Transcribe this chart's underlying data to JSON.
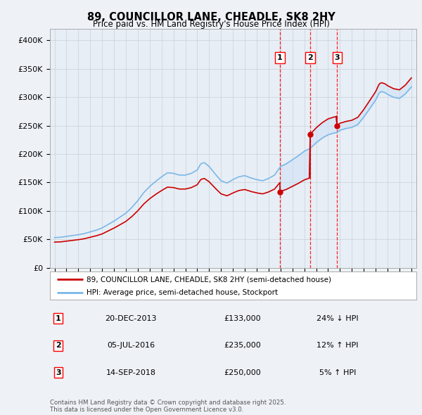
{
  "title": "89, COUNCILLOR LANE, CHEADLE, SK8 2HY",
  "subtitle": "Price paid vs. HM Land Registry's House Price Index (HPI)",
  "ylim": [
    0,
    420000
  ],
  "yticks": [
    0,
    50000,
    100000,
    150000,
    200000,
    250000,
    300000,
    350000,
    400000
  ],
  "ytick_labels": [
    "£0",
    "£50K",
    "£100K",
    "£150K",
    "£200K",
    "£250K",
    "£300K",
    "£350K",
    "£400K"
  ],
  "hpi_color": "#7ab8e8",
  "price_color": "#cc0000",
  "fill_color": "#cce0f5",
  "sale_labels": [
    "1",
    "2",
    "3"
  ],
  "legend_label_price": "89, COUNCILLOR LANE, CHEADLE, SK8 2HY (semi-detached house)",
  "legend_label_hpi": "HPI: Average price, semi-detached house, Stockport",
  "table_rows": [
    [
      "1",
      "20-DEC-2013",
      "£133,000",
      "24% ↓ HPI"
    ],
    [
      "2",
      "05-JUL-2016",
      "£235,000",
      "12% ↑ HPI"
    ],
    [
      "3",
      "14-SEP-2018",
      "£250,000",
      "5% ↑ HPI"
    ]
  ],
  "footnote": "Contains HM Land Registry data © Crown copyright and database right 2025.\nThis data is licensed under the Open Government Licence v3.0.",
  "background_color": "#eef2f7",
  "plot_bg_color": "#e8eef5"
}
